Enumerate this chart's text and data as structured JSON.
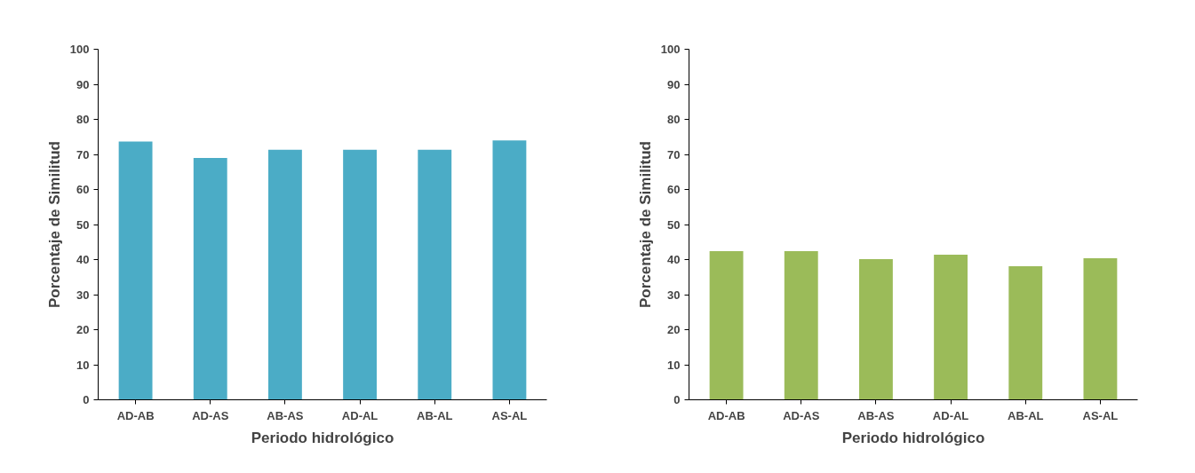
{
  "chart_data": [
    {
      "type": "bar",
      "xlabel": "Periodo hidrológico",
      "ylabel": "Porcentaje de Similitud",
      "categories": [
        "AD-AB",
        "AD-AS",
        "AB-AS",
        "AD-AL",
        "AB-AL",
        "AS-AL"
      ],
      "values": [
        73.7,
        69.0,
        71.3,
        71.3,
        71.3,
        74.0
      ],
      "color": "#4bacc6",
      "ylim": [
        0,
        100
      ],
      "yticks": [
        0,
        10,
        20,
        30,
        40,
        50,
        60,
        70,
        80,
        90,
        100
      ],
      "grid": false
    },
    {
      "type": "bar",
      "xlabel": "Periodo hidrológico",
      "ylabel": "Porcentaje de Similitud",
      "categories": [
        "AD-AB",
        "AD-AS",
        "AB-AS",
        "AD-AL",
        "AB-AL",
        "AS-AL"
      ],
      "values": [
        42.4,
        42.4,
        40.1,
        41.4,
        38.1,
        40.4
      ],
      "color": "#9bbb59",
      "ylim": [
        0,
        100
      ],
      "yticks": [
        0,
        10,
        20,
        30,
        40,
        50,
        60,
        70,
        80,
        90,
        100
      ],
      "grid": false
    }
  ]
}
